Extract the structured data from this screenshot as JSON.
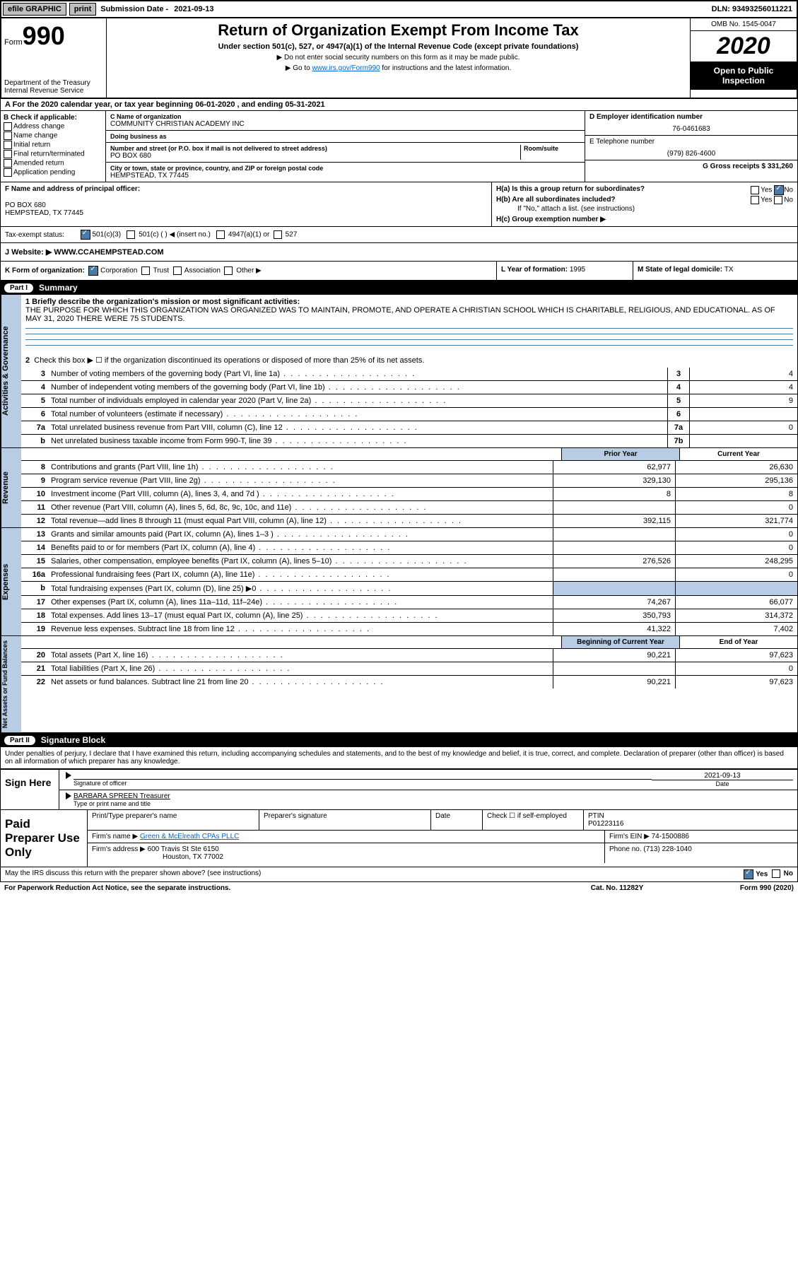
{
  "topbar": {
    "efile": "efile GRAPHIC",
    "print": "print",
    "sub_label": "Submission Date - ",
    "sub_date": "2021-09-13",
    "dln": "DLN: 93493256011221"
  },
  "header": {
    "form_word": "Form",
    "form_num": "990",
    "dept": "Department of the Treasury Internal Revenue Service",
    "title": "Return of Organization Exempt From Income Tax",
    "sub1": "Under section 501(c), 527, or 4947(a)(1) of the Internal Revenue Code (except private foundations)",
    "sub2": "▶ Do not enter social security numbers on this form as it may be made public.",
    "sub3_pre": "▶ Go to ",
    "sub3_link": "www.irs.gov/Form990",
    "sub3_post": " for instructions and the latest information.",
    "omb": "OMB No. 1545-0047",
    "year": "2020",
    "open": "Open to Public Inspection"
  },
  "row_a": "A For the 2020 calendar year, or tax year beginning 06-01-2020     , and ending 05-31-2021",
  "col_b": {
    "hdr": "B Check if applicable:",
    "opts": [
      "Address change",
      "Name change",
      "Initial return",
      "Final return/terminated",
      "Amended return",
      "Application pending"
    ]
  },
  "col_c": {
    "c_lbl": "C Name of organization",
    "c_val": "COMMUNITY CHRISTIAN ACADEMY INC",
    "dba_lbl": "Doing business as",
    "dba_val": "",
    "addr_lbl": "Number and street (or P.O. box if mail is not delivered to street address)",
    "room_lbl": "Room/suite",
    "addr_val": "PO BOX 680",
    "city_lbl": "City or town, state or province, country, and ZIP or foreign postal code",
    "city_val": "HEMPSTEAD, TX  77445"
  },
  "col_d": {
    "d_lbl": "D Employer identification number",
    "d_val": "76-0461683",
    "e_lbl": "E Telephone number",
    "e_val": "(979) 826-4600",
    "g_lbl": "G Gross receipts $ ",
    "g_val": "331,260"
  },
  "row_f": {
    "f_lbl": "F  Name and address of principal officer:",
    "f_addr1": "PO BOX 680",
    "f_addr2": "HEMPSTEAD, TX  77445",
    "ha_lbl": "H(a)  Is this a group return for subordinates?",
    "hb_lbl": "H(b)  Are all subordinates included?",
    "hb_note": "If \"No,\" attach a list. (see instructions)",
    "hc_lbl": "H(c)  Group exemption number ▶"
  },
  "tax_status": {
    "lbl": "Tax-exempt status:",
    "o1": "501(c)(3)",
    "o2": "501(c) (   ) ◀ (insert no.)",
    "o3": "4947(a)(1) or",
    "o4": "527"
  },
  "website": {
    "lbl": "J   Website: ▶",
    "val": "WWW.CCAHEMPSTEAD.COM"
  },
  "korg": {
    "k_lbl": "K Form of organization:",
    "k_opts": [
      "Corporation",
      "Trust",
      "Association",
      "Other ▶"
    ],
    "l_lbl": "L Year of formation: ",
    "l_val": "1995",
    "m_lbl": "M State of legal domicile: ",
    "m_val": "TX"
  },
  "part1": {
    "num": "Part I",
    "title": "Summary"
  },
  "summary": {
    "l1_lbl": "1  Briefly describe the organization's mission or most significant activities:",
    "l1_txt": "THE PURPOSE FOR WHICH THIS ORGANIZATION WAS ORGANIZED WAS TO MAINTAIN, PROMOTE, AND OPERATE A CHRISTIAN SCHOOL WHICH IS CHARITABLE, RELIGIOUS, AND EDUCATIONAL. AS OF MAY 31, 2020 THERE WERE 75 STUDENTS.",
    "l2": "Check this box ▶ ☐  if the organization discontinued its operations or disposed of more than 25% of its net assets."
  },
  "side_labels": {
    "gov": "Activities & Governance",
    "rev": "Revenue",
    "exp": "Expenses",
    "net": "Net Assets or Fund Balances"
  },
  "gov_rows": [
    {
      "n": "3",
      "d": "Number of voting members of the governing body (Part VI, line 1a)",
      "box": "3",
      "v": "4"
    },
    {
      "n": "4",
      "d": "Number of independent voting members of the governing body (Part VI, line 1b)",
      "box": "4",
      "v": "4"
    },
    {
      "n": "5",
      "d": "Total number of individuals employed in calendar year 2020 (Part V, line 2a)",
      "box": "5",
      "v": "9"
    },
    {
      "n": "6",
      "d": "Total number of volunteers (estimate if necessary)",
      "box": "6",
      "v": ""
    },
    {
      "n": "7a",
      "d": "Total unrelated business revenue from Part VIII, column (C), line 12",
      "box": "7a",
      "v": "0"
    },
    {
      "n": "b",
      "d": "Net unrelated business taxable income from Form 990-T, line 39",
      "box": "7b",
      "v": ""
    }
  ],
  "col_headers": {
    "prior": "Prior Year",
    "curr": "Current Year",
    "beg": "Beginning of Current Year",
    "end": "End of Year"
  },
  "rev_rows": [
    {
      "n": "8",
      "d": "Contributions and grants (Part VIII, line 1h)",
      "p": "62,977",
      "c": "26,630"
    },
    {
      "n": "9",
      "d": "Program service revenue (Part VIII, line 2g)",
      "p": "329,130",
      "c": "295,136"
    },
    {
      "n": "10",
      "d": "Investment income (Part VIII, column (A), lines 3, 4, and 7d )",
      "p": "8",
      "c": "8"
    },
    {
      "n": "11",
      "d": "Other revenue (Part VIII, column (A), lines 5, 6d, 8c, 9c, 10c, and 11e)",
      "p": "",
      "c": "0"
    },
    {
      "n": "12",
      "d": "Total revenue—add lines 8 through 11 (must equal Part VIII, column (A), line 12)",
      "p": "392,115",
      "c": "321,774"
    }
  ],
  "exp_rows": [
    {
      "n": "13",
      "d": "Grants and similar amounts paid (Part IX, column (A), lines 1–3 )",
      "p": "",
      "c": "0"
    },
    {
      "n": "14",
      "d": "Benefits paid to or for members (Part IX, column (A), line 4)",
      "p": "",
      "c": "0"
    },
    {
      "n": "15",
      "d": "Salaries, other compensation, employee benefits (Part IX, column (A), lines 5–10)",
      "p": "276,526",
      "c": "248,295"
    },
    {
      "n": "16a",
      "d": "Professional fundraising fees (Part IX, column (A), line 11e)",
      "p": "",
      "c": "0"
    },
    {
      "n": "b",
      "d": "Total fundraising expenses (Part IX, column (D), line 25) ▶0",
      "p": "__shade__",
      "c": "__shade__"
    },
    {
      "n": "17",
      "d": "Other expenses (Part IX, column (A), lines 11a–11d, 11f–24e)",
      "p": "74,267",
      "c": "66,077"
    },
    {
      "n": "18",
      "d": "Total expenses. Add lines 13–17 (must equal Part IX, column (A), line 25)",
      "p": "350,793",
      "c": "314,372"
    },
    {
      "n": "19",
      "d": "Revenue less expenses. Subtract line 18 from line 12",
      "p": "41,322",
      "c": "7,402"
    }
  ],
  "net_rows": [
    {
      "n": "20",
      "d": "Total assets (Part X, line 16)",
      "p": "90,221",
      "c": "97,623"
    },
    {
      "n": "21",
      "d": "Total liabilities (Part X, line 26)",
      "p": "",
      "c": "0"
    },
    {
      "n": "22",
      "d": "Net assets or fund balances. Subtract line 21 from line 20",
      "p": "90,221",
      "c": "97,623"
    }
  ],
  "part2": {
    "num": "Part II",
    "title": "Signature Block"
  },
  "sig": {
    "decl": "Under penalties of perjury, I declare that I have examined this return, including accompanying schedules and statements, and to the best of my knowledge and belief, it is true, correct, and complete. Declaration of preparer (other than officer) is based on all information of which preparer has any knowledge.",
    "sign_here": "Sign Here",
    "sig_officer": "Signature of officer",
    "date_lbl": "Date",
    "date_val": "2021-09-13",
    "name_title": "BARBARA SPREEN  Treasurer",
    "type_lbl": "Type or print name and title"
  },
  "prep": {
    "hdr": "Paid Preparer Use Only",
    "c1": "Print/Type preparer's name",
    "c2": "Preparer's signature",
    "c3": "Date",
    "c4_lbl": "Check ☐ if self-employed",
    "ptin_lbl": "PTIN",
    "ptin": "P01223116",
    "firm_lbl": "Firm's name      ▶",
    "firm": "Green & McElreath CPAs PLLC",
    "ein_lbl": "Firm's EIN ▶",
    "ein": "74-1500886",
    "addr_lbl": "Firm's address ▶",
    "addr1": "600 Travis St Ste 6150",
    "addr2": "Houston, TX  77002",
    "phone_lbl": "Phone no. ",
    "phone": "(713) 228-1040"
  },
  "footer": {
    "discuss": "May the IRS discuss this return with the preparer shown above? (see instructions)",
    "yes": "Yes",
    "no": "No",
    "paperwork": "For Paperwork Reduction Act Notice, see the separate instructions.",
    "cat": "Cat. No. 11282Y",
    "form": "Form 990 (2020)"
  }
}
